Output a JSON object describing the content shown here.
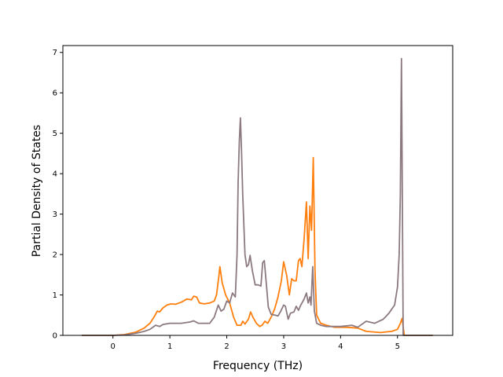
{
  "chart_data": {
    "type": "line",
    "title": "",
    "xlabel": "Frequency (THz)",
    "ylabel": "Partial Density of States",
    "xlim": [
      -0.88,
      5.97
    ],
    "ylim": [
      0,
      7.17
    ],
    "xticks": [
      0,
      1,
      2,
      3,
      4,
      5
    ],
    "yticks": [
      0,
      1,
      2,
      3,
      4,
      5,
      6,
      7
    ],
    "grid": false,
    "legend": "none",
    "series": [
      {
        "color": "#ff7f0e",
        "points": [
          [
            -0.55,
            0
          ],
          [
            0.0,
            0
          ],
          [
            0.2,
            0.02
          ],
          [
            0.4,
            0.08
          ],
          [
            0.55,
            0.18
          ],
          [
            0.65,
            0.3
          ],
          [
            0.72,
            0.45
          ],
          [
            0.78,
            0.6
          ],
          [
            0.82,
            0.58
          ],
          [
            0.88,
            0.68
          ],
          [
            0.95,
            0.75
          ],
          [
            1.02,
            0.78
          ],
          [
            1.1,
            0.77
          ],
          [
            1.2,
            0.82
          ],
          [
            1.3,
            0.9
          ],
          [
            1.38,
            0.88
          ],
          [
            1.42,
            0.97
          ],
          [
            1.47,
            0.95
          ],
          [
            1.52,
            0.8
          ],
          [
            1.6,
            0.78
          ],
          [
            1.7,
            0.8
          ],
          [
            1.78,
            0.85
          ],
          [
            1.82,
            1.0
          ],
          [
            1.86,
            1.45
          ],
          [
            1.88,
            1.7
          ],
          [
            1.92,
            1.3
          ],
          [
            1.98,
            1.0
          ],
          [
            2.05,
            0.8
          ],
          [
            2.12,
            0.45
          ],
          [
            2.18,
            0.25
          ],
          [
            2.25,
            0.25
          ],
          [
            2.28,
            0.35
          ],
          [
            2.32,
            0.28
          ],
          [
            2.38,
            0.4
          ],
          [
            2.42,
            0.58
          ],
          [
            2.46,
            0.45
          ],
          [
            2.52,
            0.3
          ],
          [
            2.58,
            0.22
          ],
          [
            2.62,
            0.25
          ],
          [
            2.67,
            0.35
          ],
          [
            2.72,
            0.3
          ],
          [
            2.78,
            0.45
          ],
          [
            2.84,
            0.65
          ],
          [
            2.9,
            0.95
          ],
          [
            2.96,
            1.35
          ],
          [
            3.0,
            1.82
          ],
          [
            3.05,
            1.5
          ],
          [
            3.1,
            1.0
          ],
          [
            3.14,
            1.4
          ],
          [
            3.18,
            1.35
          ],
          [
            3.22,
            1.35
          ],
          [
            3.26,
            1.85
          ],
          [
            3.29,
            1.9
          ],
          [
            3.32,
            1.7
          ],
          [
            3.36,
            2.4
          ],
          [
            3.4,
            3.3
          ],
          [
            3.43,
            1.9
          ],
          [
            3.46,
            3.2
          ],
          [
            3.49,
            2.6
          ],
          [
            3.52,
            4.4
          ],
          [
            3.55,
            1.6
          ],
          [
            3.58,
            0.5
          ],
          [
            3.65,
            0.3
          ],
          [
            3.75,
            0.25
          ],
          [
            3.9,
            0.2
          ],
          [
            4.1,
            0.2
          ],
          [
            4.3,
            0.18
          ],
          [
            4.45,
            0.1
          ],
          [
            4.7,
            0.07
          ],
          [
            4.9,
            0.1
          ],
          [
            5.0,
            0.15
          ],
          [
            5.05,
            0.3
          ],
          [
            5.08,
            0.42
          ],
          [
            5.1,
            0.2
          ],
          [
            5.12,
            0
          ],
          [
            5.62,
            0
          ]
        ]
      },
      {
        "color": "#8c7a80",
        "points": [
          [
            -0.55,
            0
          ],
          [
            0.0,
            0
          ],
          [
            0.2,
            0.01
          ],
          [
            0.4,
            0.05
          ],
          [
            0.55,
            0.1
          ],
          [
            0.65,
            0.15
          ],
          [
            0.75,
            0.25
          ],
          [
            0.82,
            0.22
          ],
          [
            0.88,
            0.27
          ],
          [
            1.0,
            0.3
          ],
          [
            1.2,
            0.3
          ],
          [
            1.35,
            0.33
          ],
          [
            1.42,
            0.36
          ],
          [
            1.5,
            0.3
          ],
          [
            1.6,
            0.3
          ],
          [
            1.7,
            0.3
          ],
          [
            1.78,
            0.45
          ],
          [
            1.85,
            0.75
          ],
          [
            1.9,
            0.6
          ],
          [
            1.95,
            0.65
          ],
          [
            2.0,
            0.85
          ],
          [
            2.05,
            0.8
          ],
          [
            2.1,
            1.05
          ],
          [
            2.15,
            0.95
          ],
          [
            2.18,
            2.0
          ],
          [
            2.2,
            3.8
          ],
          [
            2.22,
            4.8
          ],
          [
            2.24,
            5.38
          ],
          [
            2.26,
            4.5
          ],
          [
            2.28,
            3.5
          ],
          [
            2.32,
            2.0
          ],
          [
            2.35,
            1.7
          ],
          [
            2.38,
            1.75
          ],
          [
            2.41,
            1.98
          ],
          [
            2.45,
            1.6
          ],
          [
            2.5,
            1.25
          ],
          [
            2.55,
            1.25
          ],
          [
            2.6,
            1.22
          ],
          [
            2.63,
            1.8
          ],
          [
            2.66,
            1.85
          ],
          [
            2.7,
            1.2
          ],
          [
            2.73,
            0.7
          ],
          [
            2.78,
            0.52
          ],
          [
            2.85,
            0.5
          ],
          [
            2.9,
            0.48
          ],
          [
            2.95,
            0.6
          ],
          [
            3.0,
            0.75
          ],
          [
            3.03,
            0.72
          ],
          [
            3.08,
            0.4
          ],
          [
            3.12,
            0.55
          ],
          [
            3.18,
            0.58
          ],
          [
            3.22,
            0.72
          ],
          [
            3.26,
            0.62
          ],
          [
            3.3,
            0.75
          ],
          [
            3.36,
            0.9
          ],
          [
            3.4,
            1.05
          ],
          [
            3.43,
            0.8
          ],
          [
            3.46,
            0.95
          ],
          [
            3.48,
            0.75
          ],
          [
            3.51,
            1.7
          ],
          [
            3.54,
            0.6
          ],
          [
            3.58,
            0.3
          ],
          [
            3.65,
            0.25
          ],
          [
            3.75,
            0.22
          ],
          [
            4.0,
            0.22
          ],
          [
            4.2,
            0.25
          ],
          [
            4.3,
            0.2
          ],
          [
            4.45,
            0.35
          ],
          [
            4.6,
            0.3
          ],
          [
            4.75,
            0.4
          ],
          [
            4.85,
            0.55
          ],
          [
            4.95,
            0.75
          ],
          [
            5.0,
            1.2
          ],
          [
            5.03,
            2.0
          ],
          [
            5.05,
            3.5
          ],
          [
            5.07,
            6.85
          ],
          [
            5.1,
            0
          ],
          [
            5.62,
            0
          ]
        ]
      }
    ]
  }
}
